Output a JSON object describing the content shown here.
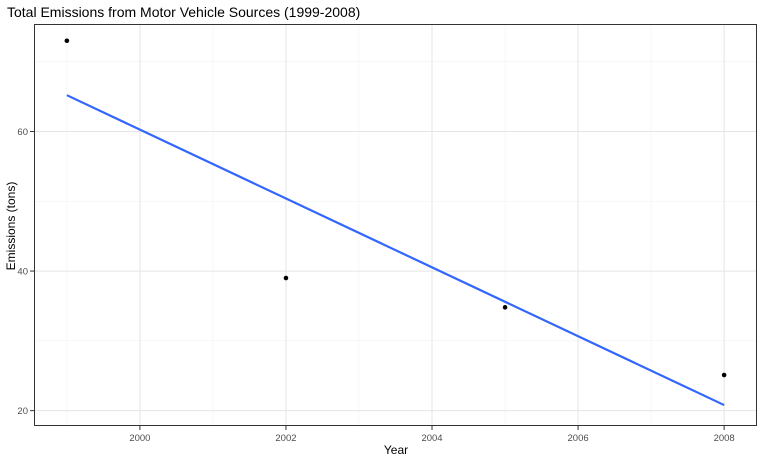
{
  "chart_data": {
    "type": "scatter",
    "title": "Total Emissions from Motor Vehicle Sources (1999-2008)",
    "xlabel": "Year",
    "ylabel": "Emissions (tons)",
    "xlim": [
      1998.55,
      2008.45
    ],
    "ylim": [
      17.8,
      75.4
    ],
    "x_ticks": [
      2000,
      2002,
      2004,
      2006,
      2008
    ],
    "x_tick_labels": [
      "2000",
      "2002",
      "2004",
      "2006",
      "2008"
    ],
    "y_ticks": [
      20,
      40,
      60
    ],
    "y_tick_labels": [
      "20",
      "40",
      "60"
    ],
    "grid": true,
    "legend": "none",
    "series": [
      {
        "type": "points",
        "x": [
          1999,
          2002,
          2005,
          2008
        ],
        "y": [
          73.0,
          39.0,
          34.8,
          25.1
        ],
        "color": "#000000"
      },
      {
        "type": "linear-fit",
        "x": [
          1999,
          2008
        ],
        "y": [
          65.2,
          20.8
        ],
        "color": "#3366ff"
      }
    ]
  }
}
